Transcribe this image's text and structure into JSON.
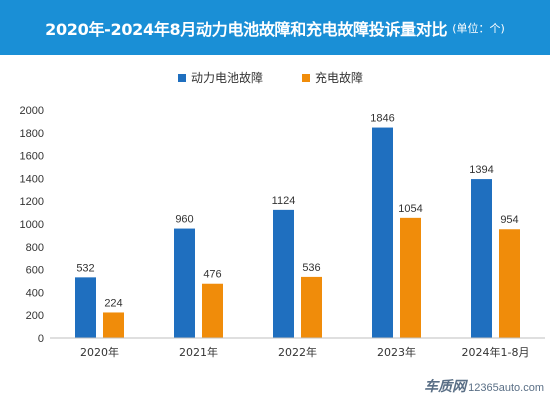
{
  "header": {
    "title": "2020年-2024年8月动力电池故障和充电故障投诉量对比",
    "unit": "(单位：个)"
  },
  "watermark": {
    "brand": "车质网",
    "site": "12365auto.com"
  },
  "colors": {
    "header_bg": "#1a8fd6",
    "series_battery": "#1f6fbf",
    "series_charging": "#f08c0a"
  },
  "chart_data": {
    "type": "bar",
    "categories": [
      "2020年",
      "2021年",
      "2022年",
      "2023年",
      "2024年1-8月"
    ],
    "series": [
      {
        "name": "动力电池故障",
        "values": [
          532,
          960,
          1124,
          1846,
          1394
        ],
        "color": "#1f6fbf"
      },
      {
        "name": "充电故障",
        "values": [
          224,
          476,
          536,
          1054,
          954
        ],
        "color": "#f08c0a"
      }
    ],
    "ylim": [
      0,
      2000
    ],
    "yticks": [
      0,
      200,
      400,
      600,
      800,
      1000,
      1200,
      1400,
      1600,
      1800,
      2000
    ],
    "data_labels": true,
    "grid": false,
    "legend": "top-center"
  }
}
